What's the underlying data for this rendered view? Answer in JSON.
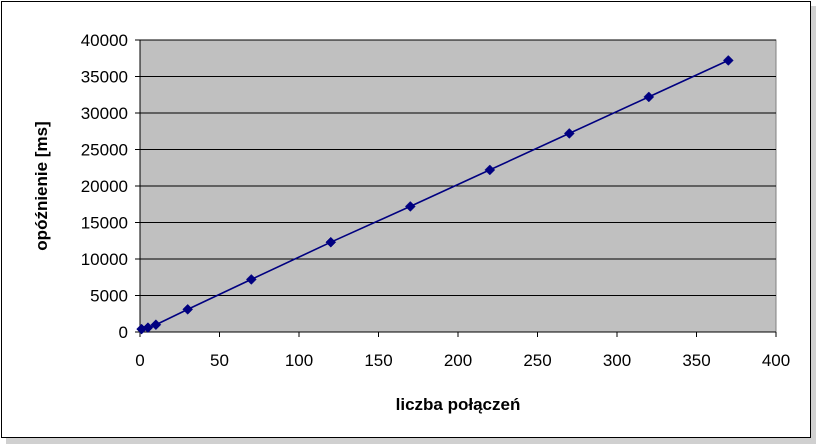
{
  "chart_data": {
    "type": "line",
    "title": "",
    "xlabel": "liczba połączeń",
    "ylabel": "opóźnienie [ms]",
    "xlim": [
      0,
      400
    ],
    "ylim": [
      0,
      40000
    ],
    "x_ticks": [
      0,
      50,
      100,
      150,
      200,
      250,
      300,
      350,
      400
    ],
    "y_ticks": [
      0,
      5000,
      10000,
      15000,
      20000,
      25000,
      30000,
      35000,
      40000
    ],
    "grid": "horizontal",
    "plot_background": "#c0c0c0",
    "series": [
      {
        "color": "#000080",
        "marker": "diamond",
        "x": [
          1,
          5,
          10,
          30,
          70,
          120,
          170,
          220,
          270,
          320,
          370
        ],
        "y": [
          400,
          600,
          1000,
          3100,
          7200,
          12300,
          17200,
          22200,
          27200,
          32200,
          37200
        ]
      }
    ]
  }
}
